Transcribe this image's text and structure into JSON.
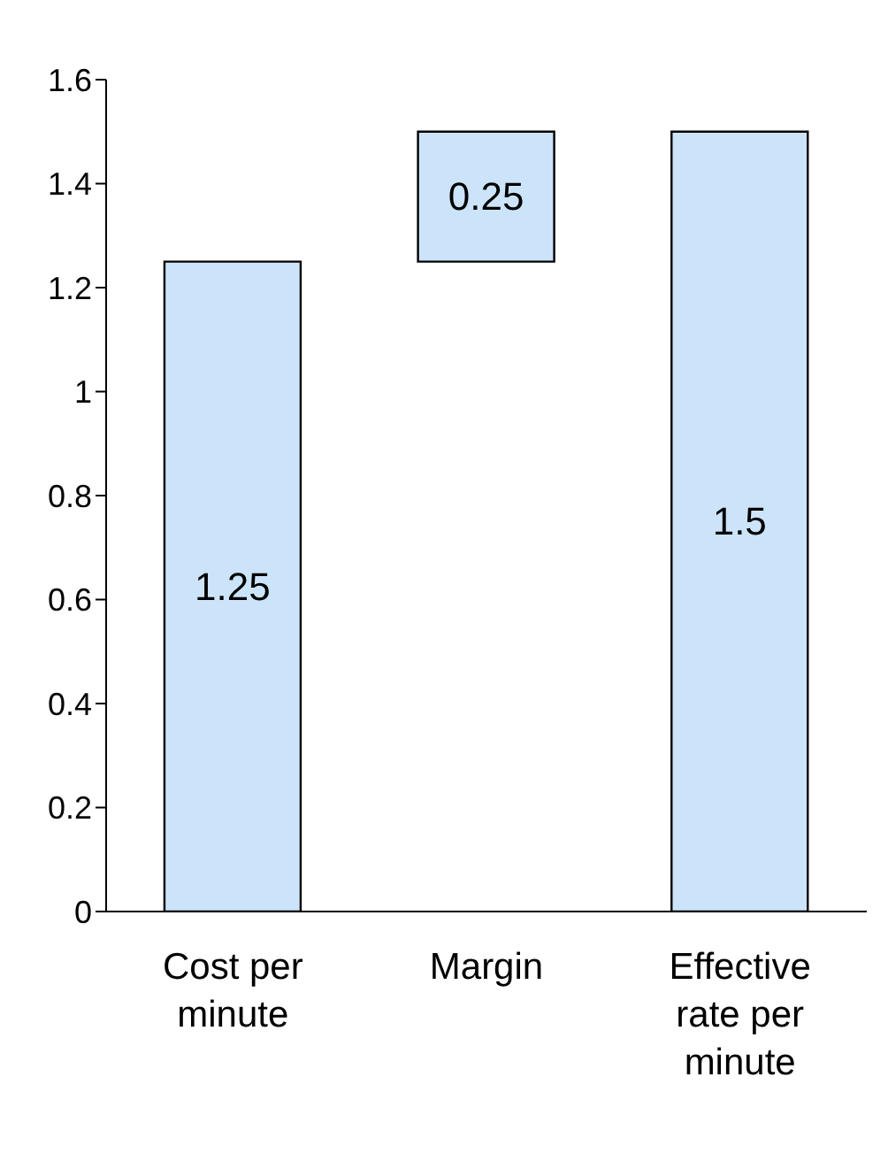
{
  "chart_data": {
    "type": "bar",
    "categories": [
      "Cost per minute",
      "Margin",
      "Effective rate per minute"
    ],
    "values": [
      1.25,
      0.25,
      1.5
    ],
    "base": [
      0,
      1.25,
      0
    ],
    "color": "#cce4fa",
    "ylim": [
      0,
      1.6
    ],
    "yticks": [
      0,
      0.2,
      0.4,
      0.6,
      0.8,
      1,
      1.2,
      1.4,
      1.6
    ],
    "data_labels": true,
    "grid": false,
    "legend": false
  }
}
